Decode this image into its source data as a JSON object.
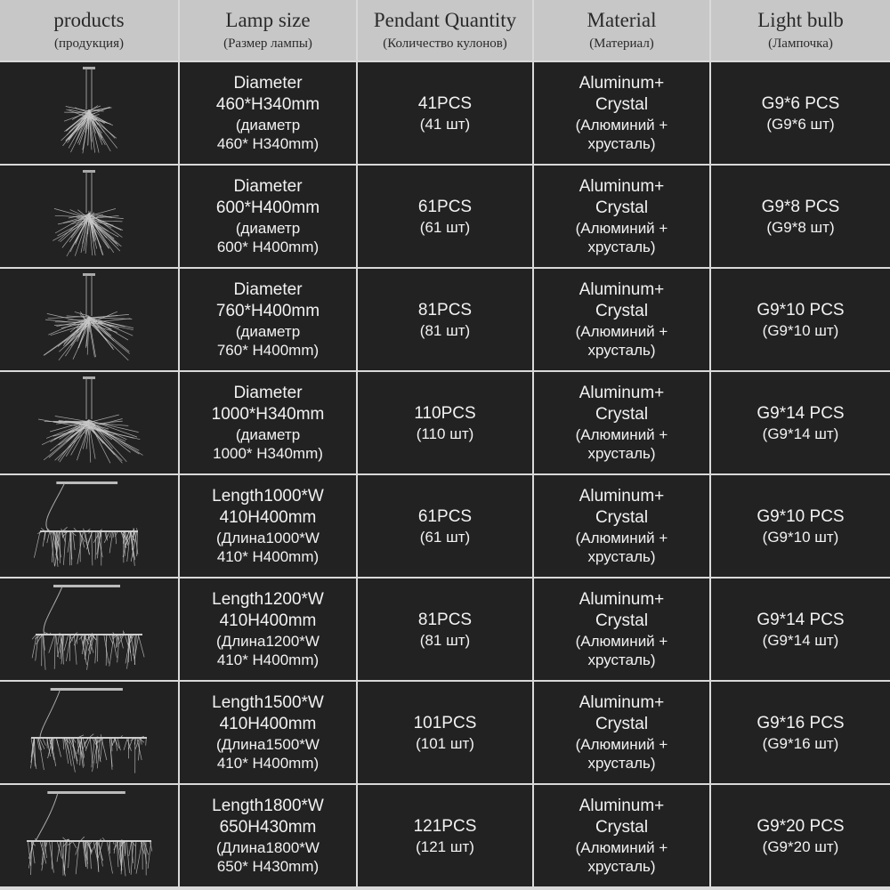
{
  "header": [
    {
      "title": "products",
      "subtitle": "(продукция)"
    },
    {
      "title": "Lamp size",
      "subtitle": "(Размер лампы)"
    },
    {
      "title": "Pendant Quantity",
      "subtitle": "(Количество кулонов)"
    },
    {
      "title": "Material",
      "subtitle": "(Материал)"
    },
    {
      "title": "Light bulb",
      "subtitle": "(Лампочка)"
    }
  ],
  "rows": [
    {
      "shape": "round",
      "size": [
        "Diameter",
        "460*H340mm",
        "(диаметр",
        "460* H340mm)"
      ],
      "qty": "41PCS",
      "qty_ru": "(41 шт)",
      "material": [
        "Aluminum+",
        "Crystal",
        "(Алюминий +",
        "хрусталь)"
      ],
      "bulb": "G9*6 PCS",
      "bulb_ru": "(G9*6 шт)"
    },
    {
      "shape": "round",
      "size": [
        "Diameter",
        "600*H400mm",
        "(диаметр",
        "600* H400mm)"
      ],
      "qty": "61PCS",
      "qty_ru": "(61 шт)",
      "material": [
        "Aluminum+",
        "Crystal",
        "(Алюминий +",
        "хрусталь)"
      ],
      "bulb": "G9*8 PCS",
      "bulb_ru": "(G9*8 шт)"
    },
    {
      "shape": "round",
      "size": [
        "Diameter",
        "760*H400mm",
        "(диаметр",
        "760* H400mm)"
      ],
      "qty": "81PCS",
      "qty_ru": "(81 шт)",
      "material": [
        "Aluminum+",
        "Crystal",
        "(Алюминий +",
        "хрусталь)"
      ],
      "bulb": "G9*10 PCS",
      "bulb_ru": "(G9*10 шт)"
    },
    {
      "shape": "round",
      "size": [
        "Diameter",
        "1000*H340mm",
        "(диаметр",
        "1000* H340mm)"
      ],
      "qty": "110PCS",
      "qty_ru": "(110 шт)",
      "material": [
        "Aluminum+",
        "Crystal",
        "(Алюминий +",
        "хрусталь)"
      ],
      "bulb": "G9*14 PCS",
      "bulb_ru": "(G9*14 шт)"
    },
    {
      "shape": "linear",
      "size": [
        "Length1000*W",
        "410H400mm",
        "(Длина1000*W",
        "410* H400mm)"
      ],
      "qty": "61PCS",
      "qty_ru": "(61 шт)",
      "material": [
        "Aluminum+",
        "Crystal",
        "(Алюминий +",
        "хрусталь)"
      ],
      "bulb": "G9*10 PCS",
      "bulb_ru": "(G9*10 шт)"
    },
    {
      "shape": "linear",
      "size": [
        "Length1200*W",
        "410H400mm",
        "(Длина1200*W",
        "410* H400mm)"
      ],
      "qty": "81PCS",
      "qty_ru": "(81 шт)",
      "material": [
        "Aluminum+",
        "Crystal",
        "(Алюминий +",
        "хрусталь)"
      ],
      "bulb": "G9*14 PCS",
      "bulb_ru": "(G9*14 шт)"
    },
    {
      "shape": "linear",
      "size": [
        "Length1500*W",
        "410H400mm",
        "(Длина1500*W",
        "410* H400mm)"
      ],
      "qty": "101PCS",
      "qty_ru": "(101 шт)",
      "material": [
        "Aluminum+",
        "Crystal",
        "(Алюминий +",
        "хрусталь)"
      ],
      "bulb": "G9*16 PCS",
      "bulb_ru": "(G9*16 шт)"
    },
    {
      "shape": "linear",
      "size": [
        "Length1800*W",
        "650H430mm",
        "(Длина1800*W",
        "650* H430mm)"
      ],
      "qty": "121PCS",
      "qty_ru": "(121 шт)",
      "material": [
        "Aluminum+",
        "Crystal",
        "(Алюминий +",
        "хрусталь)"
      ],
      "bulb": "G9*20 PCS",
      "bulb_ru": "(G9*20 шт)"
    }
  ]
}
